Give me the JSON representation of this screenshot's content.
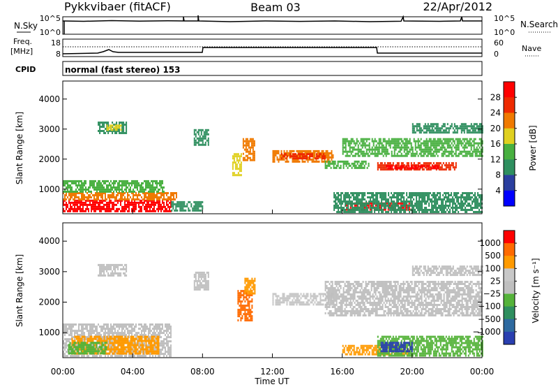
{
  "header": {
    "station": "Pykkvibaer (fitACF)",
    "beam": "Beam 03",
    "date": "22/Apr/2012"
  },
  "summary_panels": {
    "nsky": {
      "label": "N.Sky",
      "ticks_left": [
        "10^5",
        "10^0"
      ],
      "ticks_right": [
        "10^5",
        "10^0"
      ],
      "right_label": "N.Search"
    },
    "freq": {
      "label_line1": "Freq.",
      "label_line2": "[MHz]",
      "ticks_left": [
        "18",
        "8"
      ],
      "ticks_right": [
        "60",
        "0"
      ],
      "right_label": "Nave"
    },
    "cpid": {
      "label": "CPID",
      "text": "normal (fast stereo) 153"
    }
  },
  "colors": {
    "power_scale": [
      "#0000ff",
      "#2b3f9f",
      "#2f8f5f",
      "#48b040",
      "#e0d020",
      "#f07a00",
      "#ee2a00",
      "#ff0000"
    ],
    "velocity_scale": [
      "#2a3fb0",
      "#2e6aa0",
      "#2f8f5f",
      "#55b33a",
      "#bfbfbf",
      "#c8c8c8",
      "#ff9a00",
      "#ff6a00",
      "#ff0000"
    ]
  },
  "chart_data": [
    {
      "type": "heatmap",
      "id": "power",
      "title": "",
      "xlabel": "Time UT",
      "ylabel": "Slant Range [km]",
      "x_ticks": [
        "00:00",
        "04:00",
        "08:00",
        "12:00",
        "16:00",
        "20:00",
        "00:00"
      ],
      "y_ticks": [
        "1000",
        "2000",
        "3000",
        "4000"
      ],
      "xlim": [
        0,
        24
      ],
      "ylim": [
        180,
        4600
      ],
      "colorbar": {
        "label": "Power [dB]",
        "ticks": [
          "4",
          "8",
          "12",
          "16",
          "20",
          "24",
          "28"
        ],
        "range": [
          0,
          32
        ]
      },
      "regions": [
        {
          "t0": 0.0,
          "t1": 6.2,
          "r0": 300,
          "r1": 650,
          "level": 7
        },
        {
          "t0": 0.0,
          "t1": 6.5,
          "r0": 650,
          "r1": 900,
          "level": 5
        },
        {
          "t0": 0.0,
          "t1": 5.8,
          "r0": 900,
          "r1": 1300,
          "level": 3
        },
        {
          "t0": 6.2,
          "t1": 8.0,
          "r0": 300,
          "r1": 600,
          "level": 2
        },
        {
          "t0": 2.0,
          "t1": 3.6,
          "r0": 2900,
          "r1": 3250,
          "level": 2
        },
        {
          "t0": 2.5,
          "t1": 3.3,
          "r0": 3000,
          "r1": 3150,
          "level": 4
        },
        {
          "t0": 7.5,
          "t1": 8.3,
          "r0": 2500,
          "r1": 3000,
          "level": 2
        },
        {
          "t0": 9.7,
          "t1": 10.2,
          "r0": 1500,
          "r1": 2200,
          "level": 4
        },
        {
          "t0": 10.3,
          "t1": 11.0,
          "r0": 2000,
          "r1": 2700,
          "level": 5
        },
        {
          "t0": 12.0,
          "t1": 15.5,
          "r0": 1950,
          "r1": 2300,
          "level": 5
        },
        {
          "t0": 12.5,
          "t1": 15.0,
          "r0": 2050,
          "r1": 2200,
          "level": 6
        },
        {
          "t0": 15.0,
          "t1": 17.5,
          "r0": 1700,
          "r1": 1950,
          "level": 3
        },
        {
          "t0": 16.0,
          "t1": 24.0,
          "r0": 2100,
          "r1": 2700,
          "level": 3
        },
        {
          "t0": 18.0,
          "t1": 22.5,
          "r0": 1650,
          "r1": 1900,
          "level": 6
        },
        {
          "t0": 18.5,
          "t1": 21.5,
          "r0": 1700,
          "r1": 1800,
          "level": 7
        },
        {
          "t0": 16.2,
          "t1": 20.0,
          "r0": 320,
          "r1": 560,
          "level": 7
        },
        {
          "t0": 15.5,
          "t1": 24.0,
          "r0": 250,
          "r1": 900,
          "level": 2
        },
        {
          "t0": 20.0,
          "t1": 24.0,
          "r0": 2900,
          "r1": 3200,
          "level": 2
        }
      ]
    },
    {
      "type": "heatmap",
      "id": "velocity",
      "title": "",
      "xlabel": "Time UT",
      "ylabel": "Slant Range [km]",
      "x_ticks": [
        "00:00",
        "04:00",
        "08:00",
        "12:00",
        "16:00",
        "20:00",
        "00:00"
      ],
      "y_ticks": [
        "1000",
        "2000",
        "3000",
        "4000"
      ],
      "xlim": [
        0,
        24
      ],
      "ylim": [
        180,
        4600
      ],
      "colorbar": {
        "label": "Velocity [m s⁻¹]",
        "ticks": [
          "1000",
          "500",
          "100",
          "25",
          "−25",
          "−100",
          "−500",
          "−1000"
        ]
      },
      "regions": [
        {
          "t0": 0.0,
          "t1": 6.2,
          "r0": 250,
          "r1": 1300,
          "level": 4
        },
        {
          "t0": 0.5,
          "t1": 5.5,
          "r0": 300,
          "r1": 900,
          "level": 6
        },
        {
          "t0": 0.3,
          "t1": 2.5,
          "r0": 300,
          "r1": 700,
          "level": 3
        },
        {
          "t0": 2.0,
          "t1": 3.6,
          "r0": 2900,
          "r1": 3250,
          "level": 4
        },
        {
          "t0": 7.5,
          "t1": 8.3,
          "r0": 2400,
          "r1": 3000,
          "level": 4
        },
        {
          "t0": 10.0,
          "t1": 10.8,
          "r0": 1400,
          "r1": 2400,
          "level": 7
        },
        {
          "t0": 10.4,
          "t1": 11.0,
          "r0": 2300,
          "r1": 2800,
          "level": 6
        },
        {
          "t0": 12.0,
          "t1": 15.5,
          "r0": 1950,
          "r1": 2300,
          "level": 5
        },
        {
          "t0": 15.0,
          "t1": 24.0,
          "r0": 1600,
          "r1": 2700,
          "level": 4
        },
        {
          "t0": 16.0,
          "t1": 19.8,
          "r0": 300,
          "r1": 600,
          "level": 6
        },
        {
          "t0": 18.0,
          "t1": 24.0,
          "r0": 250,
          "r1": 900,
          "level": 3
        },
        {
          "t0": 18.2,
          "t1": 20.0,
          "r0": 400,
          "r1": 700,
          "level": 0
        },
        {
          "t0": 20.0,
          "t1": 24.0,
          "r0": 2900,
          "r1": 3200,
          "level": 4
        }
      ]
    }
  ]
}
